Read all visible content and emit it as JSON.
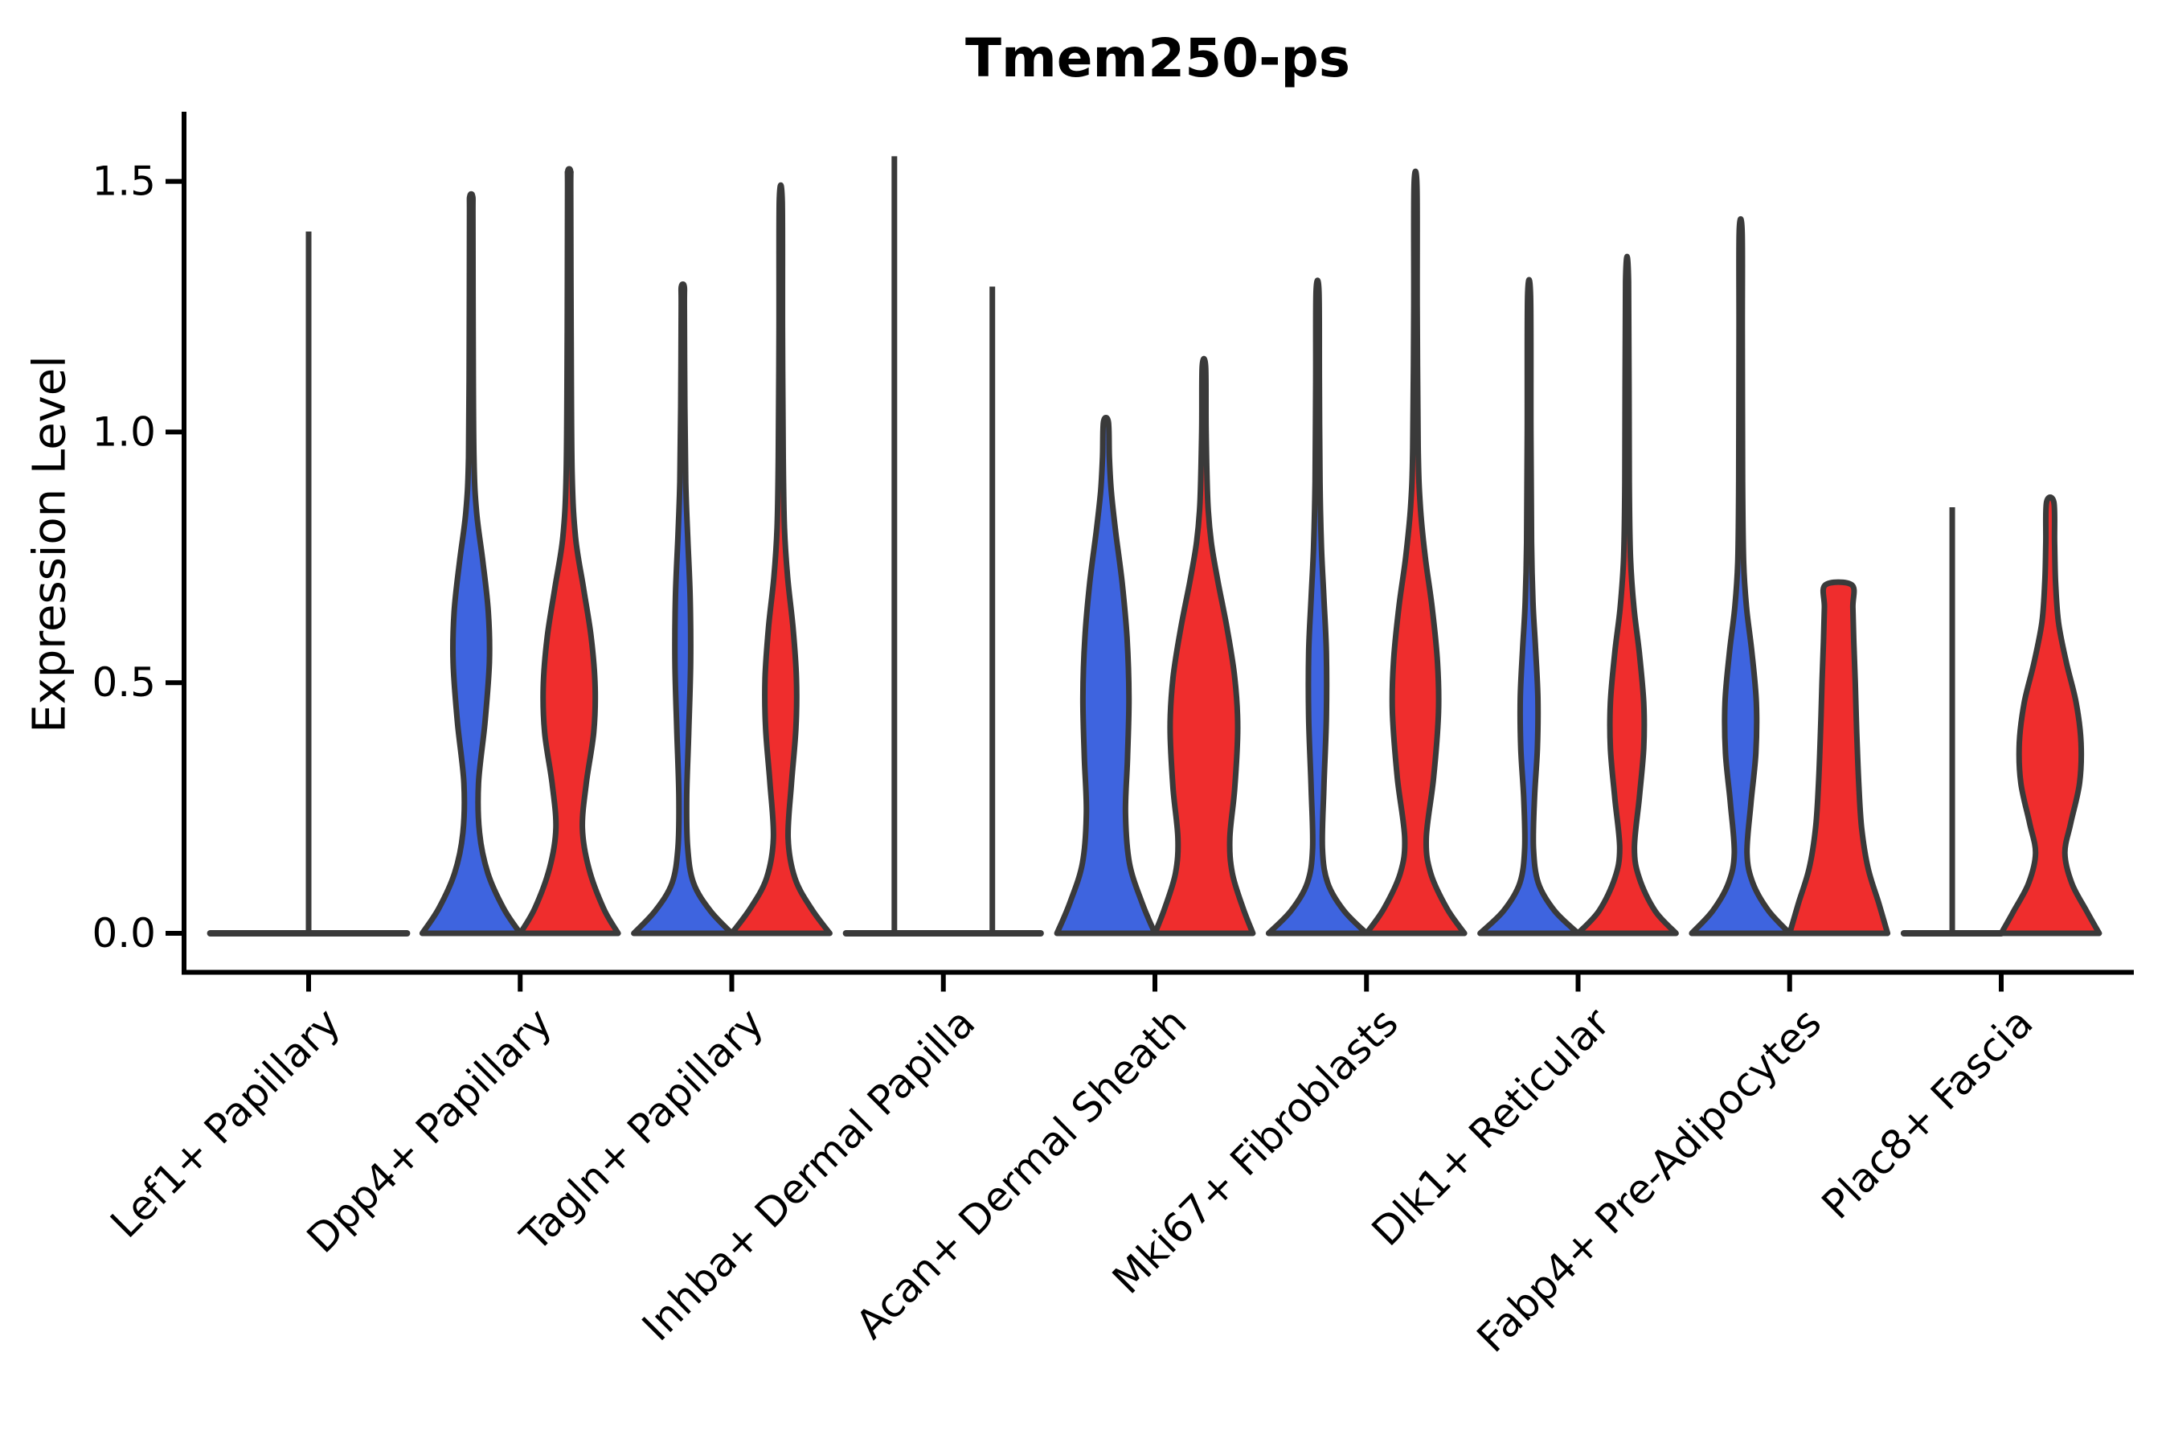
{
  "chart_data": {
    "type": "violin",
    "title": "Tmem250-ps",
    "ylabel": "Expression Level",
    "xlabel": "",
    "legend": "none",
    "grid": false,
    "ylim": [
      -0.08,
      1.64
    ],
    "ytick_values": [
      0,
      0.5,
      1.0,
      1.5
    ],
    "ytick_labels": [
      "0.0",
      "0.5",
      "1.0",
      "1.5"
    ],
    "axis_color": "#000000",
    "outline_color": "#3a3a3a",
    "series": [
      {
        "name": "blue",
        "color": "#3e64df"
      },
      {
        "name": "red",
        "color": "#ef2d2d"
      }
    ],
    "categories": [
      "Lef1+ Papillary",
      "Dpp4+ Papillary",
      "Tagln+ Papillary",
      "Inhba+ Dermal Papilla",
      "Acan+ Dermal Sheath",
      "Mki67+ Fibroblasts",
      "Dlk1+ Reticular",
      "Fabp4+ Pre-Adipocytes",
      "Plac8+ Fascia"
    ],
    "groups": [
      {
        "category": "Lef1+ Papillary",
        "baseline": {
          "from": -0.465,
          "to": 0.465
        },
        "violins": [
          {
            "color": "none",
            "kind": "spike",
            "offset": 0,
            "max": 1.4
          }
        ]
      },
      {
        "category": "Dpp4+ Papillary",
        "violins": [
          {
            "color": "blue",
            "kind": "violin",
            "offset": -0.2315,
            "half_width": 0.2315,
            "max": 1.47,
            "profile": [
              [
                0,
                1
              ],
              [
                0.05,
                0.66
              ],
              [
                0.12,
                0.34
              ],
              [
                0.2,
                0.17
              ],
              [
                0.3,
                0.15
              ],
              [
                0.42,
                0.28
              ],
              [
                0.54,
                0.37
              ],
              [
                0.64,
                0.35
              ],
              [
                0.74,
                0.24
              ],
              [
                0.84,
                0.11
              ],
              [
                0.95,
                0.055
              ],
              [
                1.2,
                0.04
              ],
              [
                1.43,
                0.035
              ],
              [
                1.47,
                0.03
              ]
            ]
          },
          {
            "color": "red",
            "kind": "violin",
            "offset": 0.2315,
            "half_width": 0.2315,
            "max": 1.52,
            "profile": [
              [
                0,
                1
              ],
              [
                0.05,
                0.7
              ],
              [
                0.13,
                0.4
              ],
              [
                0.21,
                0.27
              ],
              [
                0.3,
                0.35
              ],
              [
                0.4,
                0.5
              ],
              [
                0.49,
                0.53
              ],
              [
                0.59,
                0.45
              ],
              [
                0.69,
                0.29
              ],
              [
                0.79,
                0.13
              ],
              [
                0.92,
                0.06
              ],
              [
                1.2,
                0.04
              ],
              [
                1.48,
                0.032
              ],
              [
                1.52,
                0.03
              ]
            ]
          }
        ]
      },
      {
        "category": "Tagln+ Papillary",
        "violins": [
          {
            "color": "blue",
            "kind": "violin",
            "offset": -0.2315,
            "half_width": 0.2315,
            "max": 1.29,
            "profile": [
              [
                0,
                1
              ],
              [
                0.045,
                0.56
              ],
              [
                0.1,
                0.22
              ],
              [
                0.17,
                0.1
              ],
              [
                0.27,
                0.08
              ],
              [
                0.4,
                0.12
              ],
              [
                0.54,
                0.16
              ],
              [
                0.67,
                0.15
              ],
              [
                0.79,
                0.1
              ],
              [
                0.9,
                0.06
              ],
              [
                1.05,
                0.042
              ],
              [
                1.25,
                0.032
              ],
              [
                1.29,
                0.03
              ]
            ]
          },
          {
            "color": "red",
            "kind": "violin",
            "offset": 0.2315,
            "half_width": 0.2315,
            "max": 1.46,
            "profile": [
              [
                0,
                1
              ],
              [
                0.05,
                0.62
              ],
              [
                0.11,
                0.29
              ],
              [
                0.19,
                0.15
              ],
              [
                0.3,
                0.22
              ],
              [
                0.41,
                0.31
              ],
              [
                0.51,
                0.32
              ],
              [
                0.61,
                0.25
              ],
              [
                0.71,
                0.14
              ],
              [
                0.81,
                0.075
              ],
              [
                0.95,
                0.05
              ],
              [
                1.2,
                0.035
              ],
              [
                1.46,
                0.03
              ]
            ]
          }
        ]
      },
      {
        "category": "Inhba+ Dermal Papilla",
        "baseline": {
          "from": -0.46,
          "to": 0.46
        },
        "violins": [
          {
            "color": "none",
            "kind": "spike",
            "offset": -0.2315,
            "max": 1.55
          },
          {
            "color": "none",
            "kind": "spike",
            "offset": 0.2315,
            "max": 1.29
          }
        ]
      },
      {
        "category": "Acan+ Dermal Sheath",
        "violins": [
          {
            "color": "blue",
            "kind": "violin",
            "offset": -0.2315,
            "half_width": 0.2315,
            "max": 1.02,
            "profile": [
              [
                0,
                1
              ],
              [
                0.06,
                0.74
              ],
              [
                0.14,
                0.48
              ],
              [
                0.24,
                0.4
              ],
              [
                0.35,
                0.44
              ],
              [
                0.47,
                0.47
              ],
              [
                0.59,
                0.43
              ],
              [
                0.7,
                0.33
              ],
              [
                0.8,
                0.2
              ],
              [
                0.88,
                0.11
              ],
              [
                0.95,
                0.07
              ],
              [
                1.02,
                0.05
              ]
            ]
          },
          {
            "color": "red",
            "kind": "violin",
            "offset": 0.2315,
            "half_width": 0.2315,
            "max": 1.13,
            "profile": [
              [
                0,
                1
              ],
              [
                0.05,
                0.8
              ],
              [
                0.12,
                0.58
              ],
              [
                0.19,
                0.53
              ],
              [
                0.29,
                0.63
              ],
              [
                0.41,
                0.69
              ],
              [
                0.51,
                0.63
              ],
              [
                0.61,
                0.47
              ],
              [
                0.7,
                0.29
              ],
              [
                0.78,
                0.15
              ],
              [
                0.86,
                0.08
              ],
              [
                1.0,
                0.045
              ],
              [
                1.13,
                0.035
              ]
            ]
          }
        ]
      },
      {
        "category": "Mki67+ Fibroblasts",
        "violins": [
          {
            "color": "blue",
            "kind": "violin",
            "offset": -0.2315,
            "half_width": 0.2315,
            "max": 1.28,
            "profile": [
              [
                0,
                1
              ],
              [
                0.045,
                0.54
              ],
              [
                0.1,
                0.21
              ],
              [
                0.17,
                0.1
              ],
              [
                0.29,
                0.13
              ],
              [
                0.43,
                0.18
              ],
              [
                0.56,
                0.18
              ],
              [
                0.67,
                0.13
              ],
              [
                0.77,
                0.08
              ],
              [
                0.9,
                0.05
              ],
              [
                1.1,
                0.037
              ],
              [
                1.28,
                0.03
              ]
            ]
          },
          {
            "color": "red",
            "kind": "violin",
            "offset": 0.2315,
            "half_width": 0.2315,
            "max": 1.49,
            "profile": [
              [
                0,
                1
              ],
              [
                0.05,
                0.64
              ],
              [
                0.12,
                0.31
              ],
              [
                0.19,
                0.22
              ],
              [
                0.31,
                0.37
              ],
              [
                0.44,
                0.47
              ],
              [
                0.54,
                0.45
              ],
              [
                0.65,
                0.34
              ],
              [
                0.75,
                0.2
              ],
              [
                0.85,
                0.1
              ],
              [
                0.97,
                0.055
              ],
              [
                1.25,
                0.035
              ],
              [
                1.49,
                0.03
              ]
            ]
          }
        ]
      },
      {
        "category": "Dlk1+ Reticular",
        "violins": [
          {
            "color": "blue",
            "kind": "violin",
            "offset": -0.2315,
            "half_width": 0.2315,
            "max": 1.27,
            "profile": [
              [
                0,
                1
              ],
              [
                0.045,
                0.52
              ],
              [
                0.1,
                0.19
              ],
              [
                0.17,
                0.09
              ],
              [
                0.27,
                0.11
              ],
              [
                0.37,
                0.17
              ],
              [
                0.47,
                0.18
              ],
              [
                0.57,
                0.13
              ],
              [
                0.66,
                0.08
              ],
              [
                0.78,
                0.05
              ],
              [
                1.0,
                0.037
              ],
              [
                1.27,
                0.03
              ]
            ]
          },
          {
            "color": "red",
            "kind": "violin",
            "offset": 0.2315,
            "half_width": 0.2315,
            "max": 1.3,
            "profile": [
              [
                0,
                1
              ],
              [
                0.045,
                0.57
              ],
              [
                0.11,
                0.25
              ],
              [
                0.17,
                0.15
              ],
              [
                0.27,
                0.25
              ],
              [
                0.37,
                0.34
              ],
              [
                0.46,
                0.34
              ],
              [
                0.56,
                0.25
              ],
              [
                0.65,
                0.14
              ],
              [
                0.75,
                0.07
              ],
              [
                0.9,
                0.045
              ],
              [
                1.3,
                0.03
              ]
            ]
          }
        ]
      },
      {
        "category": "Fabp4+ Pre-Adipocytes",
        "violins": [
          {
            "color": "blue",
            "kind": "violin",
            "offset": -0.2315,
            "half_width": 0.2315,
            "max": 1.4,
            "profile": [
              [
                0,
                1
              ],
              [
                0.045,
                0.57
              ],
              [
                0.1,
                0.25
              ],
              [
                0.16,
                0.13
              ],
              [
                0.26,
                0.21
              ],
              [
                0.36,
                0.31
              ],
              [
                0.46,
                0.32
              ],
              [
                0.56,
                0.23
              ],
              [
                0.65,
                0.12
              ],
              [
                0.74,
                0.06
              ],
              [
                0.9,
                0.04
              ],
              [
                1.2,
                0.033
              ],
              [
                1.4,
                0.03
              ]
            ]
          },
          {
            "color": "red",
            "kind": "violin",
            "offset": 0.2315,
            "half_width": 0.2315,
            "max": 0.7,
            "profile": [
              [
                0,
                1
              ],
              [
                0.06,
                0.82
              ],
              [
                0.13,
                0.6
              ],
              [
                0.21,
                0.47
              ],
              [
                0.3,
                0.41
              ],
              [
                0.4,
                0.37
              ],
              [
                0.5,
                0.34
              ],
              [
                0.58,
                0.31
              ],
              [
                0.65,
                0.29
              ],
              [
                0.695,
                0.27
              ]
            ]
          }
        ]
      },
      {
        "category": "Plac8+ Fascia",
        "baseline": {
          "from": -0.46,
          "to": 0.0
        },
        "violins": [
          {
            "color": "none",
            "kind": "spike",
            "offset": -0.2315,
            "max": 0.85
          },
          {
            "color": "red",
            "kind": "violin",
            "offset": 0.2315,
            "half_width": 0.2315,
            "max": 0.86,
            "profile": [
              [
                0,
                1
              ],
              [
                0.045,
                0.74
              ],
              [
                0.1,
                0.44
              ],
              [
                0.16,
                0.3
              ],
              [
                0.22,
                0.42
              ],
              [
                0.3,
                0.6
              ],
              [
                0.38,
                0.63
              ],
              [
                0.46,
                0.53
              ],
              [
                0.54,
                0.33
              ],
              [
                0.62,
                0.17
              ],
              [
                0.7,
                0.11
              ],
              [
                0.78,
                0.09
              ],
              [
                0.86,
                0.075
              ]
            ]
          }
        ]
      }
    ]
  }
}
